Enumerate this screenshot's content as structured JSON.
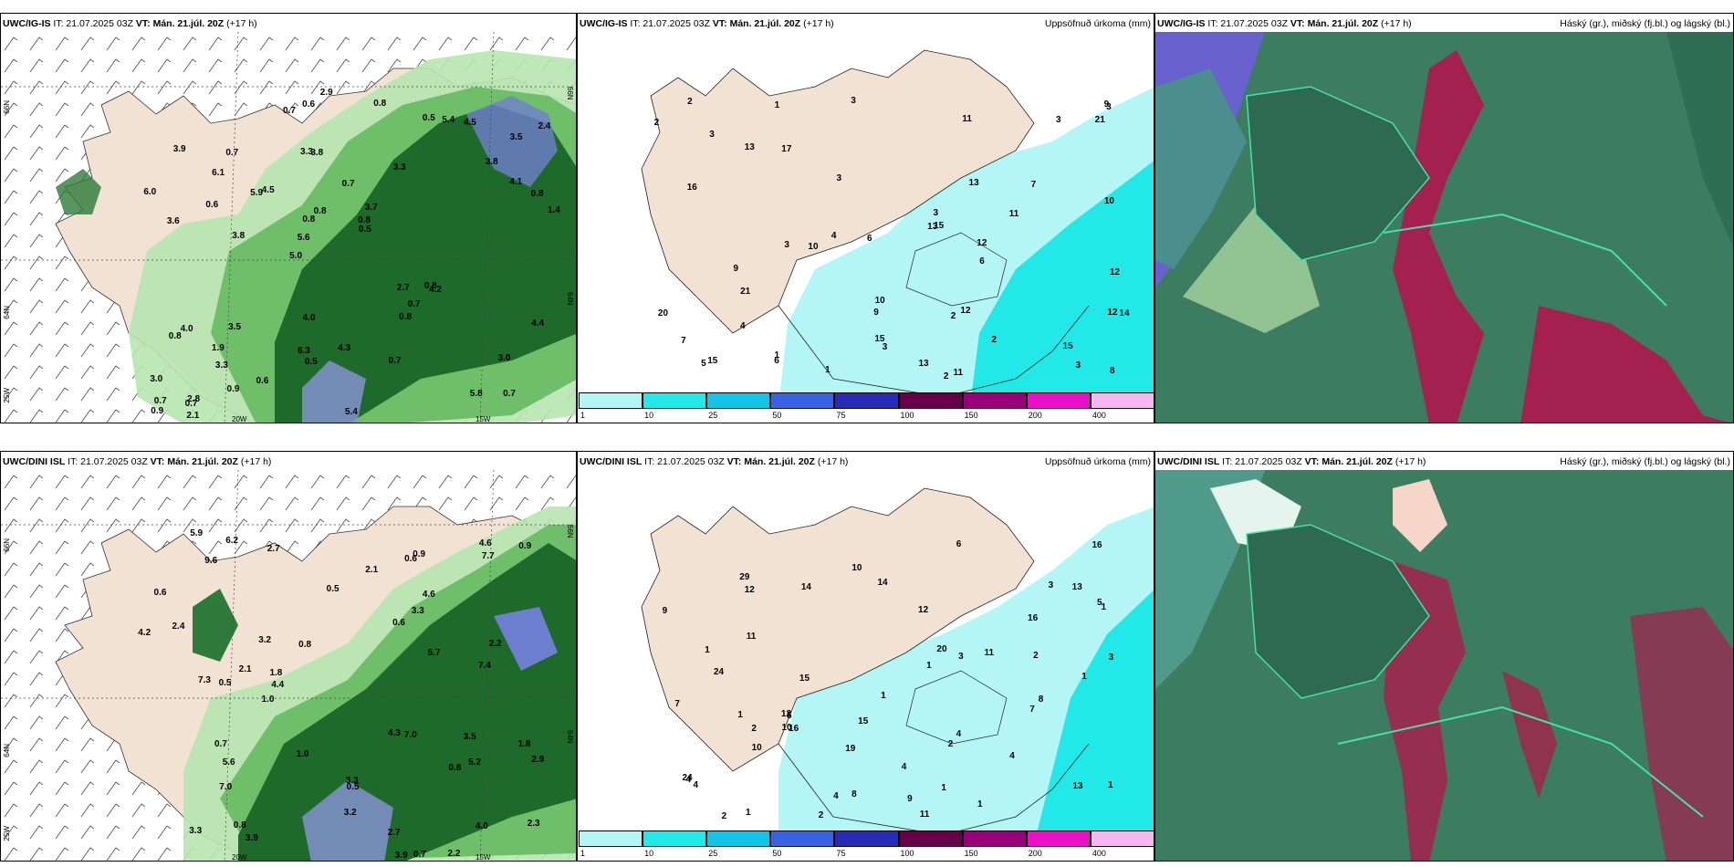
{
  "panels": [
    {
      "title_model": "UWC/IG-IS",
      "title_it": " IT: 21.07.2025 03Z ",
      "title_vt": "VT: Mán. 21.júl. 20Z",
      "title_fc": " (+17 h)",
      "right_label": ""
    },
    {
      "title_model": "UWC/IG-IS",
      "title_it": " IT: 21.07.2025 03Z ",
      "title_vt": "VT: Mán. 21.júl. 20Z",
      "title_fc": " (+17 h)",
      "right_label": "Uppsöfnuð úrkoma (mm)"
    },
    {
      "title_model": "UWC/IG-IS",
      "title_it": " IT: 21.07.2025 03Z ",
      "title_vt": "VT: Mán. 21.júl. 20Z",
      "title_fc": " (+17 h)",
      "right_label": "Háský (gr.), miðský (fj.bl.) og lágský (bl.)"
    },
    {
      "title_model": "UWC/DINI ISL",
      "title_it": " IT: 21.07.2025 03Z ",
      "title_vt": "VT: Mán. 21.júl. 20Z",
      "title_fc": " (+17 h)",
      "right_label": ""
    },
    {
      "title_model": "UWC/DINI ISL",
      "title_it": " IT: 21.07.2025 03Z ",
      "title_vt": "VT: Mán. 21.júl. 20Z",
      "title_fc": " (+17 h)",
      "right_label": "Uppsöfnuð úrkoma (mm)"
    },
    {
      "title_model": "UWC/DINI ISL",
      "title_it": " IT: 21.07.2025 03Z ",
      "title_vt": "VT: Mán. 21.júl. 20Z",
      "title_fc": " (+17 h)",
      "right_label": "Háský (gr.), miðský (fj.bl.) og lágský (bl.)"
    }
  ],
  "colorbar": {
    "ticks": [
      "1",
      "10",
      "25",
      "50",
      "75",
      "100",
      "150",
      "200",
      "400"
    ],
    "colors": [
      "#b4f6f6",
      "#22e8e8",
      "#14c4e6",
      "#3a62e6",
      "#2a2ab8",
      "#680048",
      "#9a007a",
      "#ea10c8",
      "#f6b6f0"
    ]
  },
  "axes": {
    "lat_top": "66N",
    "lat_bottom": "64N",
    "lat_left_bottom": "25W",
    "lon_mid": "20W",
    "lon_right": "15W",
    "lat_right_top": "66N",
    "lat_right_mid": "64N"
  },
  "labels": {
    "p1": [
      "0.7",
      "3.6",
      "3.5",
      "5.0",
      "3.3",
      "2.8",
      "3.3",
      "0.7",
      "4.0",
      "4.5",
      "3.0",
      "3.3",
      "3.8",
      "3.7",
      "4.2",
      "3.9",
      "0.6",
      "1.4",
      "2.7",
      "4.1",
      "5.6",
      "6.3",
      "0.8",
      "0.7",
      "0.5",
      "3.5",
      "5.8",
      "3.0",
      "0.8",
      "5.4",
      "5.9",
      "0.6",
      "0.8",
      "0.9",
      "0.8",
      "0.8",
      "0.7",
      "0.5",
      "0.5",
      "0.8",
      "3.8",
      "2.4",
      "0.7",
      "0.7",
      "1.9",
      "2.1",
      "0.9",
      "4.3",
      "4.5",
      "2.9",
      "3.8",
      "6.0",
      "6.1",
      "5.4",
      "0.7",
      "0.8",
      "0.7",
      "0.8",
      "4.4",
      "4.0",
      "0.6"
    ],
    "p2": [
      "1",
      "2",
      "1",
      "2",
      "1",
      "3",
      "3",
      "3",
      "3",
      "3",
      "3",
      "3",
      "4",
      "9",
      "11",
      "13",
      "16",
      "6",
      "10",
      "2",
      "2",
      "3",
      "3",
      "5",
      "7",
      "9",
      "20",
      "21",
      "2",
      "6",
      "6",
      "11",
      "10",
      "21",
      "4",
      "12",
      "12",
      "7",
      "13",
      "15",
      "15",
      "11",
      "14",
      "15",
      "17",
      "12",
      "12",
      "13",
      "13",
      "15",
      "9",
      "10",
      "8"
    ],
    "p4": [
      "1.8",
      "2.2",
      "0.5",
      "3.3",
      "3.3",
      "3.2",
      "2.7",
      "4.6",
      "3.9",
      "7.4",
      "7.0",
      "7.7",
      "4.2",
      "5.7",
      "3.9",
      "9.6",
      "7.0",
      "0.8",
      "0.6",
      "0.5",
      "2.4",
      "3.5",
      "4.0",
      "7.3",
      "0.9",
      "0.6",
      "0.8",
      "1.0",
      "0.7",
      "2.1",
      "3.2",
      "2.2",
      "2.3",
      "2.7",
      "2.9",
      "0.5",
      "0.6",
      "4.6",
      "4.4",
      "5.9",
      "5.2",
      "3.3",
      "5.6",
      "6.2",
      "2.1",
      "4.3",
      "0.8",
      "1.8",
      "0.9",
      "0.7",
      "1.0"
    ],
    "p5": [
      "4",
      "4",
      "9",
      "3",
      "3",
      "7",
      "6",
      "16",
      "20",
      "1",
      "4",
      "5",
      "5",
      "1",
      "1",
      "1",
      "2",
      "2",
      "1",
      "1",
      "1",
      "2",
      "1",
      "1",
      "4",
      "7",
      "11",
      "2",
      "4",
      "4",
      "12",
      "12",
      "11",
      "29",
      "2",
      "10",
      "8",
      "8",
      "9",
      "14",
      "16",
      "3",
      "11",
      "14",
      "12",
      "19",
      "16",
      "15",
      "10",
      "10",
      "13",
      "24",
      "24",
      "13",
      "15",
      "1"
    ]
  }
}
